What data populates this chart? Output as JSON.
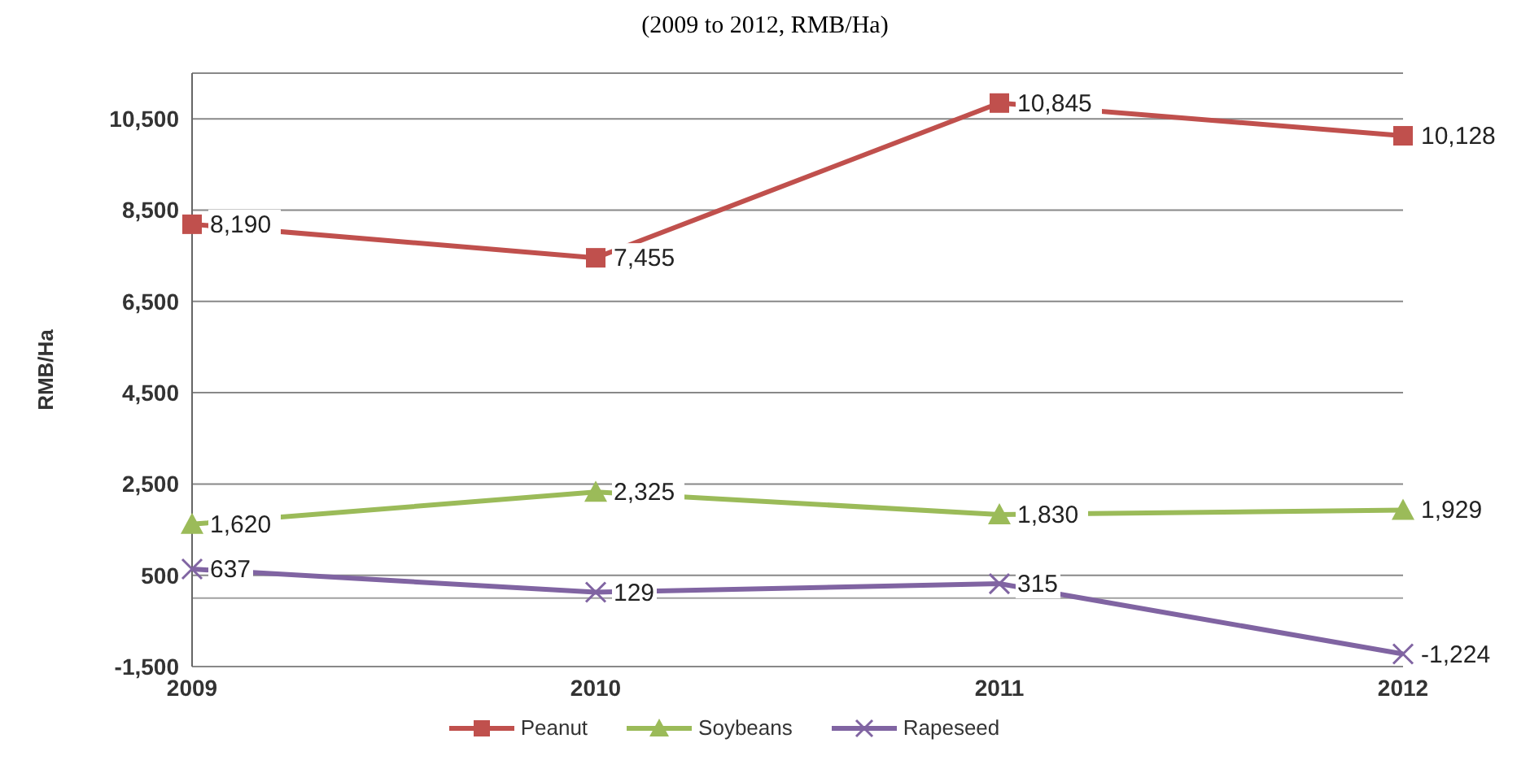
{
  "chart_data": {
    "type": "line",
    "subtitle": "(2009 to 2012, RMB/Ha)",
    "ylabel": "RMB/Ha",
    "categories": [
      "2009",
      "2010",
      "2011",
      "2012"
    ],
    "series": [
      {
        "name": "Peanut",
        "color": "#c0504d",
        "marker": "square",
        "values": [
          8190,
          7455,
          10845,
          10128
        ],
        "value_labels": [
          "8,190",
          "7,455",
          "10,845",
          "10,128"
        ]
      },
      {
        "name": "Soybeans",
        "color": "#9bbb59",
        "marker": "triangle",
        "values": [
          1620,
          2325,
          1830,
          1929
        ],
        "value_labels": [
          "1,620",
          "2,325",
          "1,830",
          "1,929"
        ]
      },
      {
        "name": "Rapeseed",
        "color": "#8064a2",
        "marker": "cross",
        "values": [
          637,
          129,
          315,
          -1224
        ],
        "value_labels": [
          "637",
          "129",
          "315",
          "-1,224"
        ]
      }
    ],
    "ylim": [
      -1500,
      11500
    ],
    "yticks": [
      {
        "value": -1500,
        "label": "-1,500"
      },
      {
        "value": 500,
        "label": "500"
      },
      {
        "value": 2500,
        "label": "2,500"
      },
      {
        "value": 4500,
        "label": "4,500"
      },
      {
        "value": 6500,
        "label": "6,500"
      },
      {
        "value": 8500,
        "label": "8,500"
      },
      {
        "value": 10500,
        "label": "10,500"
      }
    ],
    "grid": "y",
    "legend": "bottom",
    "ref_lines": [
      {
        "axis": "y",
        "value": 0,
        "color": "#a0a0a0"
      }
    ]
  }
}
